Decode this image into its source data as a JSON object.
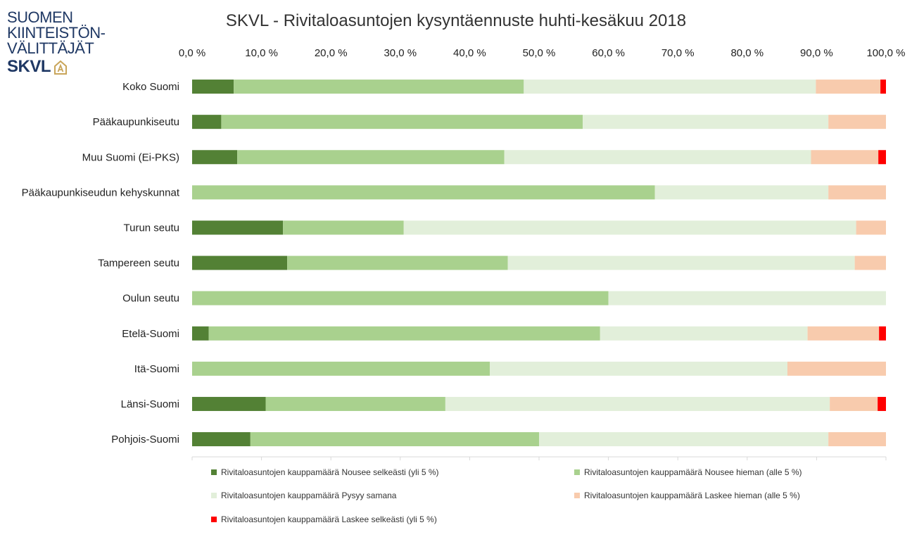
{
  "logo": {
    "line1": "SUOMEN",
    "line2": "KIINTEISTÖN-",
    "line3": "VÄLITTÄJÄT",
    "line4": "SKVL",
    "mark_icon": "house-a-icon"
  },
  "chart_data": {
    "type": "bar",
    "orientation": "horizontal-stacked-100",
    "title": "SKVL - Rivitaloasuntojen kysyntäennuste huhti-kesäkuu 2018",
    "xlim": [
      0,
      100
    ],
    "x_ticks": [
      "0,0 %",
      "10,0 %",
      "20,0 %",
      "30,0 %",
      "40,0 %",
      "50,0 %",
      "60,0 %",
      "70,0 %",
      "80,0 %",
      "90,0 %",
      "100,0 %"
    ],
    "x_axis_position": "top",
    "grid": false,
    "legend_position": "bottom",
    "categories": [
      "Koko Suomi",
      "Pääkaupunkiseutu",
      "Muu Suomi (Ei-PKS)",
      "Pääkaupunkiseudun kehyskunnat",
      "Turun seutu",
      "Tampereen seutu",
      "Oulun seutu",
      "Etelä-Suomi",
      "Itä-Suomi",
      "Länsi-Suomi",
      "Pohjois-Suomi"
    ],
    "series": [
      {
        "name": "Rivitaloasuntojen kauppamäärä Nousee selkeästi (yli 5 %)",
        "color": "#538135",
        "values": [
          6.0,
          4.2,
          6.5,
          0.0,
          13.1,
          13.7,
          0.0,
          2.4,
          0.0,
          10.6,
          8.4
        ]
      },
      {
        "name": "Rivitaloasuntojen kauppamäärä Nousee hieman (alle 5 %)",
        "color": "#a9d18e",
        "values": [
          41.8,
          52.1,
          38.5,
          66.7,
          17.4,
          31.8,
          60.0,
          56.4,
          42.9,
          25.9,
          41.6
        ]
      },
      {
        "name": "Rivitaloasuntojen kauppamäärä Pysyy samana",
        "color": "#e2efda",
        "values": [
          42.1,
          35.4,
          44.2,
          25.0,
          65.2,
          50.0,
          40.0,
          29.9,
          42.9,
          55.4,
          41.7
        ]
      },
      {
        "name": "Rivitaloasuntojen kauppamäärä Laskee hieman (alle 5 %)",
        "color": "#f8cbad",
        "values": [
          9.3,
          8.3,
          9.7,
          8.3,
          4.3,
          4.5,
          0.0,
          10.3,
          14.2,
          6.9,
          8.3
        ]
      },
      {
        "name": "Rivitaloasuntojen kauppamäärä Laskee selkeästi (yli 5 %)",
        "color": "#ff0000",
        "values": [
          0.8,
          0.0,
          1.1,
          0.0,
          0.0,
          0.0,
          0.0,
          1.0,
          0.0,
          1.2,
          0.0
        ]
      }
    ]
  }
}
